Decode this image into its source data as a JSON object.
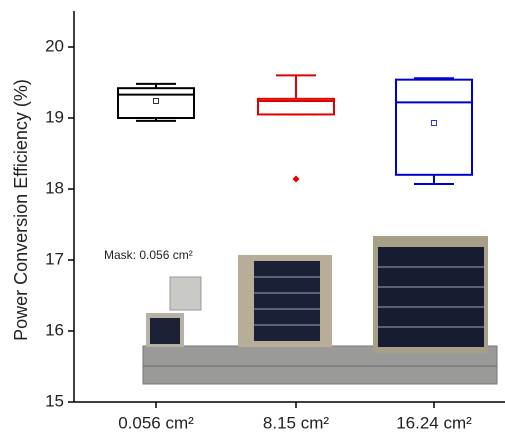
{
  "chart_data": {
    "type": "box",
    "ylabel": "Power Conversion Efficiency (%)",
    "annotation": "Mask: 0.056 cm²",
    "categories": [
      "0.056 cm²",
      "8.15 cm²",
      "16.24 cm²"
    ],
    "ylim": [
      15,
      20.5
    ],
    "yticks": [
      15,
      16,
      17,
      18,
      19,
      20
    ],
    "boxes": [
      {
        "color": "#000000",
        "whisker_low": 18.96,
        "q1": 19.0,
        "median": 19.33,
        "q3": 19.42,
        "whisker_high": 19.48,
        "mean": 19.24,
        "outliers": []
      },
      {
        "color": "#e00000",
        "whisker_low": 19.05,
        "q1": 19.05,
        "median": 19.24,
        "q3": 19.27,
        "whisker_high": 19.6,
        "outliers": [
          18.14
        ]
      },
      {
        "color": "#0000cc",
        "whisker_low": 18.07,
        "q1": 18.2,
        "median": 19.22,
        "q3": 19.54,
        "whisker_high": 19.56,
        "mean": 18.93,
        "outliers": []
      }
    ]
  }
}
